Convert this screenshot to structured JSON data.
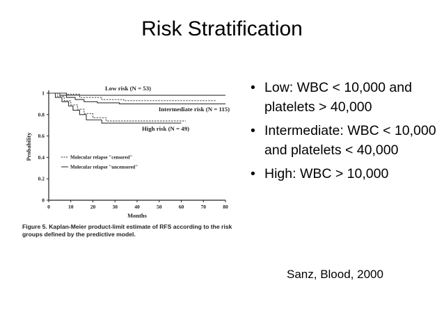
{
  "slide": {
    "title": "Risk Stratification",
    "bullets": [
      "Low: WBC < 10,000 and platelets > 40,000",
      "Intermediate: WBC < 10,000 and platelets < 40,000",
      "High: WBC > 10,000"
    ],
    "bullet_glyph": "•",
    "citation": "Sanz, Blood, 2000"
  },
  "chart_data": {
    "type": "line",
    "title": "",
    "xlabel": "Months",
    "ylabel": "Probability",
    "xlim": [
      0,
      80
    ],
    "ylim": [
      0,
      1
    ],
    "x_ticks": [
      0,
      10,
      20,
      30,
      40,
      50,
      60,
      70,
      80
    ],
    "y_ticks": [
      0,
      0.2,
      0.4,
      0.6,
      0.8,
      1
    ],
    "y_tick_labels": [
      "0",
      "0.2",
      "0.4",
      "0.6",
      "0.8",
      "1"
    ],
    "grid": false,
    "series": [
      {
        "name": "Low risk (N = 53)",
        "points": [
          [
            0,
            1
          ],
          [
            8,
            1
          ],
          [
            8,
            0.98
          ],
          [
            80,
            0.98
          ]
        ],
        "censored_points": [
          [
            0,
            1
          ],
          [
            8,
            1
          ],
          [
            8,
            0.98
          ],
          [
            76,
            0.98
          ]
        ],
        "color": "#333333"
      },
      {
        "name": "Intermediate risk (N = 115)",
        "points": [
          [
            0,
            1
          ],
          [
            5,
            1
          ],
          [
            5,
            0.98
          ],
          [
            8,
            0.98
          ],
          [
            8,
            0.96
          ],
          [
            12,
            0.96
          ],
          [
            12,
            0.94
          ],
          [
            16,
            0.94
          ],
          [
            16,
            0.92
          ],
          [
            22,
            0.92
          ],
          [
            22,
            0.91
          ],
          [
            32,
            0.91
          ],
          [
            32,
            0.9
          ],
          [
            80,
            0.9
          ]
        ],
        "censored_points": [
          [
            0,
            1
          ],
          [
            8,
            1
          ],
          [
            8,
            0.99
          ],
          [
            14,
            0.99
          ],
          [
            14,
            0.96
          ],
          [
            24,
            0.96
          ],
          [
            24,
            0.94
          ],
          [
            34,
            0.94
          ],
          [
            34,
            0.93
          ],
          [
            76,
            0.93
          ]
        ],
        "color": "#333333"
      },
      {
        "name": "High risk (N = 49)",
        "points": [
          [
            0,
            1
          ],
          [
            3,
            1
          ],
          [
            3,
            0.96
          ],
          [
            6,
            0.96
          ],
          [
            6,
            0.92
          ],
          [
            9,
            0.92
          ],
          [
            9,
            0.88
          ],
          [
            11,
            0.88
          ],
          [
            11,
            0.84
          ],
          [
            14,
            0.84
          ],
          [
            14,
            0.8
          ],
          [
            17,
            0.8
          ],
          [
            17,
            0.75
          ],
          [
            24,
            0.75
          ],
          [
            24,
            0.72
          ],
          [
            60,
            0.72
          ]
        ],
        "censored_points": [
          [
            0,
            1
          ],
          [
            4,
            1
          ],
          [
            4,
            0.97
          ],
          [
            7,
            0.97
          ],
          [
            7,
            0.93
          ],
          [
            10,
            0.93
          ],
          [
            10,
            0.89
          ],
          [
            13,
            0.89
          ],
          [
            13,
            0.85
          ],
          [
            16,
            0.85
          ],
          [
            16,
            0.81
          ],
          [
            20,
            0.81
          ],
          [
            20,
            0.77
          ],
          [
            26,
            0.77
          ],
          [
            26,
            0.74
          ],
          [
            62,
            0.74
          ]
        ],
        "color": "#333333"
      }
    ],
    "curve_labels": [
      "Low risk (N = 53)",
      "Intermediate risk (N = 115)",
      "High risk (N = 49)"
    ],
    "legend": [
      {
        "label": "Molecular relapse \"censored\"",
        "style": "dashed"
      },
      {
        "label": "Molecular relapse \"uncensored\"",
        "style": "solid"
      }
    ],
    "legend_position": "bottom-left",
    "caption_lead": "Figure 5.",
    "caption": "Kaplan-Meier product-limit estimate of RFS according to the risk groups defined by the predictive model."
  }
}
